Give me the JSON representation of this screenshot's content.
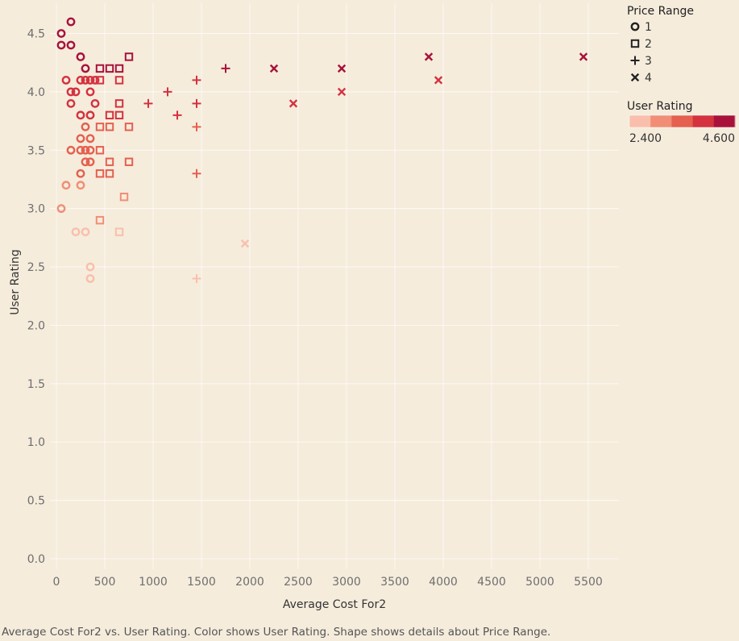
{
  "caption": "Average Cost For2 vs. User Rating.  Color shows User Rating.  Shape shows details about Price Range.",
  "colors": {
    "background": "#f5ecdc",
    "rating_scale": [
      "#f9bfac",
      "#f18e75",
      "#e5604f",
      "#d4323f",
      "#a8123a"
    ]
  },
  "chart_data": {
    "type": "scatter",
    "xlabel": "Average Cost For2",
    "ylabel": "User Rating",
    "xlim": [
      0,
      5500
    ],
    "ylim": [
      0,
      4.6
    ],
    "x_ticks": [
      "0",
      "500",
      "1000",
      "1500",
      "2000",
      "2500",
      "3000",
      "3500",
      "4000",
      "4500",
      "5000",
      "5500"
    ],
    "y_ticks": [
      "0.0",
      "0.5",
      "1.0",
      "1.5",
      "2.0",
      "2.5",
      "3.0",
      "3.5",
      "4.0",
      "4.5"
    ],
    "grid": true,
    "legend_shape": {
      "title": "Price Range",
      "items": [
        {
          "label": "1",
          "shape": "circle"
        },
        {
          "label": "2",
          "shape": "square"
        },
        {
          "label": "3",
          "shape": "plus"
        },
        {
          "label": "4",
          "shape": "cross"
        }
      ]
    },
    "legend_color": {
      "title": "User Rating",
      "min_label": "2.400",
      "max_label": "4.600"
    },
    "series": [
      {
        "price_range": "1",
        "shape": "circle",
        "points": [
          [
            150,
            4.6
          ],
          [
            50,
            4.5
          ],
          [
            50,
            4.4
          ],
          [
            150,
            4.4
          ],
          [
            250,
            4.3
          ],
          [
            300,
            4.2
          ],
          [
            100,
            4.1
          ],
          [
            250,
            4.1
          ],
          [
            300,
            4.1
          ],
          [
            350,
            4.1
          ],
          [
            400,
            4.1
          ],
          [
            150,
            4.0
          ],
          [
            200,
            4.0
          ],
          [
            350,
            4.0
          ],
          [
            150,
            3.9
          ],
          [
            400,
            3.9
          ],
          [
            250,
            3.8
          ],
          [
            350,
            3.8
          ],
          [
            300,
            3.7
          ],
          [
            250,
            3.6
          ],
          [
            350,
            3.6
          ],
          [
            150,
            3.5
          ],
          [
            250,
            3.5
          ],
          [
            300,
            3.5
          ],
          [
            350,
            3.5
          ],
          [
            300,
            3.4
          ],
          [
            350,
            3.4
          ],
          [
            250,
            3.3
          ],
          [
            100,
            3.2
          ],
          [
            250,
            3.2
          ],
          [
            50,
            3.0
          ],
          [
            200,
            2.8
          ],
          [
            300,
            2.8
          ],
          [
            350,
            2.5
          ],
          [
            350,
            2.4
          ]
        ]
      },
      {
        "price_range": "2",
        "shape": "square",
        "points": [
          [
            750,
            4.3
          ],
          [
            450,
            4.2
          ],
          [
            550,
            4.2
          ],
          [
            650,
            4.2
          ],
          [
            450,
            4.1
          ],
          [
            650,
            4.1
          ],
          [
            650,
            3.9
          ],
          [
            550,
            3.8
          ],
          [
            650,
            3.8
          ],
          [
            450,
            3.7
          ],
          [
            550,
            3.7
          ],
          [
            750,
            3.7
          ],
          [
            450,
            3.5
          ],
          [
            550,
            3.4
          ],
          [
            750,
            3.4
          ],
          [
            450,
            3.3
          ],
          [
            550,
            3.3
          ],
          [
            700,
            3.1
          ],
          [
            450,
            2.9
          ],
          [
            650,
            2.8
          ]
        ]
      },
      {
        "price_range": "3",
        "shape": "plus",
        "points": [
          [
            1750,
            4.2
          ],
          [
            1450,
            4.1
          ],
          [
            1150,
            4.0
          ],
          [
            950,
            3.9
          ],
          [
            1450,
            3.9
          ],
          [
            1250,
            3.8
          ],
          [
            1450,
            3.7
          ],
          [
            1450,
            3.3
          ],
          [
            1450,
            2.4
          ]
        ]
      },
      {
        "price_range": "4",
        "shape": "cross",
        "points": [
          [
            3850,
            4.3
          ],
          [
            5450,
            4.3
          ],
          [
            2250,
            4.2
          ],
          [
            2950,
            4.2
          ],
          [
            3950,
            4.1
          ],
          [
            2950,
            4.0
          ],
          [
            2450,
            3.9
          ],
          [
            1950,
            2.7
          ]
        ]
      }
    ]
  }
}
